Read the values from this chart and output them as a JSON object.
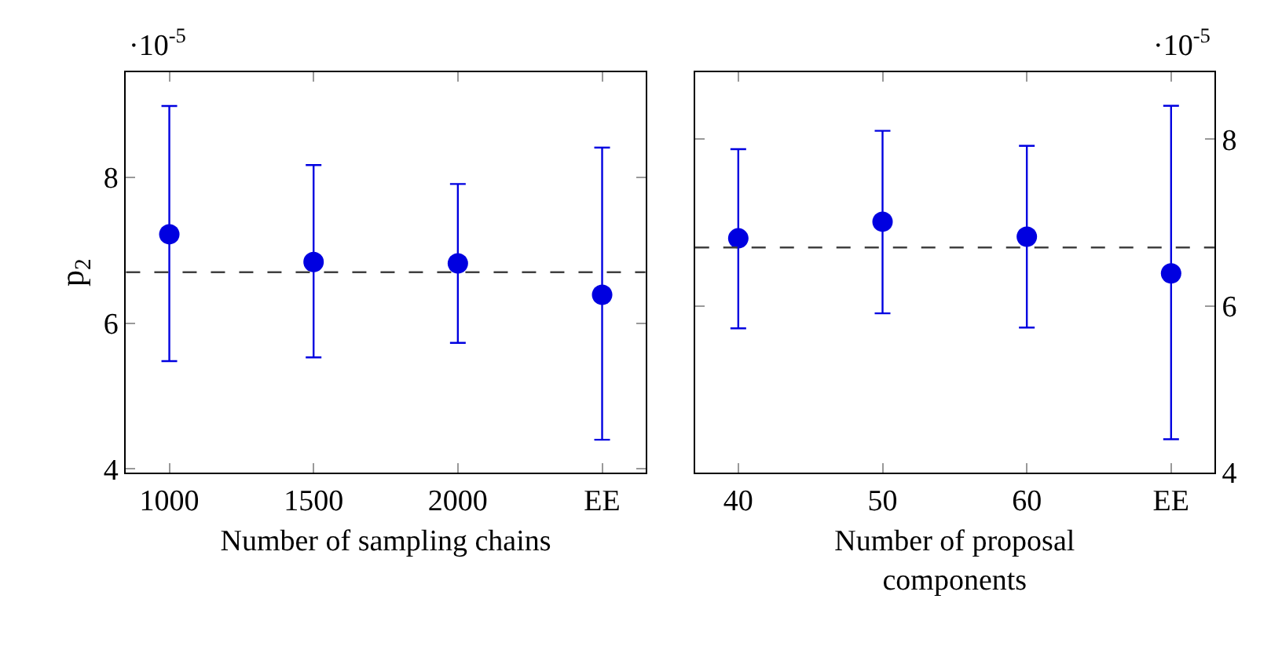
{
  "chart_data": [
    {
      "type": "scatter",
      "xlabel": "Number of sampling chains",
      "ylabel": "p$_{2}$",
      "categories": [
        "1000",
        "1500",
        "2000",
        "EE"
      ],
      "series": [
        {
          "color": "#0000e0",
          "values": [
            7.22,
            6.84,
            6.82,
            6.39
          ],
          "errors": [
            [
              5.48,
              8.98
            ],
            [
              5.53,
              8.17
            ],
            [
              5.73,
              7.91
            ],
            [
              4.4,
              8.41
            ]
          ]
        }
      ],
      "ylim": [
        3.95,
        9.44
      ],
      "yticks": [
        4,
        6,
        8
      ],
      "marker": "circle",
      "ref_lines": [
        {
          "axis": "y",
          "value": 6.7,
          "color": "#404040",
          "line_style": "dashed"
        }
      ],
      "annotations": [
        "·10$^{-5}$"
      ]
    },
    {
      "type": "scatter",
      "xlabel": "Number of proposal\ncomponents",
      "categories": [
        "40",
        "50",
        "60",
        "EE"
      ],
      "series": [
        {
          "color": "#0000e0",
          "axis": "y2",
          "values": [
            6.81,
            7.01,
            6.83,
            6.39
          ],
          "errors": [
            [
              5.73,
              7.88
            ],
            [
              5.91,
              8.1
            ],
            [
              5.74,
              7.92
            ],
            [
              4.4,
              8.4
            ]
          ]
        }
      ],
      "y2lim": [
        4.0,
        8.8
      ],
      "y2ticks": [
        4,
        6,
        8
      ],
      "marker": "circle",
      "ref_lines": [
        {
          "axis": "y2",
          "value": 6.7,
          "color": "#404040",
          "line_style": "dashed"
        }
      ],
      "annotations": [
        "·10$^{-5}$"
      ]
    }
  ]
}
